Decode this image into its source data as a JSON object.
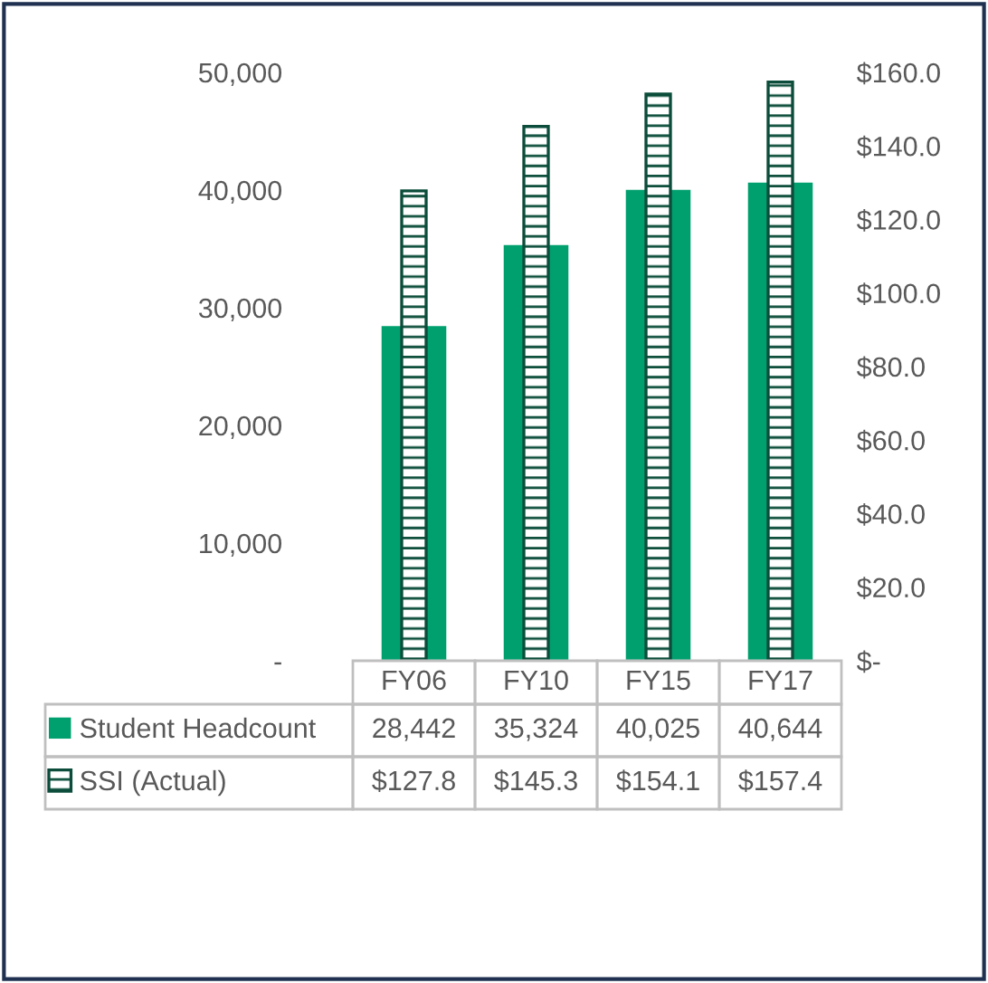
{
  "chart_data": {
    "type": "bar",
    "categories": [
      "FY06",
      "FY10",
      "FY15",
      "FY17"
    ],
    "series": [
      {
        "name": "Student Headcount",
        "color": "#00a06e",
        "values": [
          28442,
          35324,
          40025,
          40644
        ],
        "value_labels": [
          "28,442",
          "35,324",
          "40,025",
          "40,644"
        ]
      },
      {
        "name": "SSI (Actual)",
        "color": "#0b4d3a",
        "axis": "y2",
        "values": [
          127.8,
          145.3,
          154.1,
          157.4
        ],
        "value_labels": [
          "$127.8",
          "$145.3",
          "$154.1",
          "$157.4"
        ]
      }
    ],
    "ylim": [
      0,
      50000
    ],
    "yticks": [
      {
        "value": 0,
        "label": "-"
      },
      {
        "value": 10000,
        "label": "10,000"
      },
      {
        "value": 20000,
        "label": "20,000"
      },
      {
        "value": 30000,
        "label": "30,000"
      },
      {
        "value": 40000,
        "label": "40,000"
      },
      {
        "value": 50000,
        "label": "50,000"
      }
    ],
    "y2lim": [
      0,
      160
    ],
    "y2ticks": [
      {
        "value": 0,
        "label": "$-"
      },
      {
        "value": 20,
        "label": "$20.0"
      },
      {
        "value": 40,
        "label": "$40.0"
      },
      {
        "value": 60,
        "label": "$60.0"
      },
      {
        "value": 80,
        "label": "$80.0"
      },
      {
        "value": 100,
        "label": "$100.0"
      },
      {
        "value": 120,
        "label": "$120.0"
      },
      {
        "value": 140,
        "label": "$140.0"
      },
      {
        "value": 160,
        "label": "$160.0"
      }
    ],
    "grid": false,
    "legend": "bottom"
  }
}
